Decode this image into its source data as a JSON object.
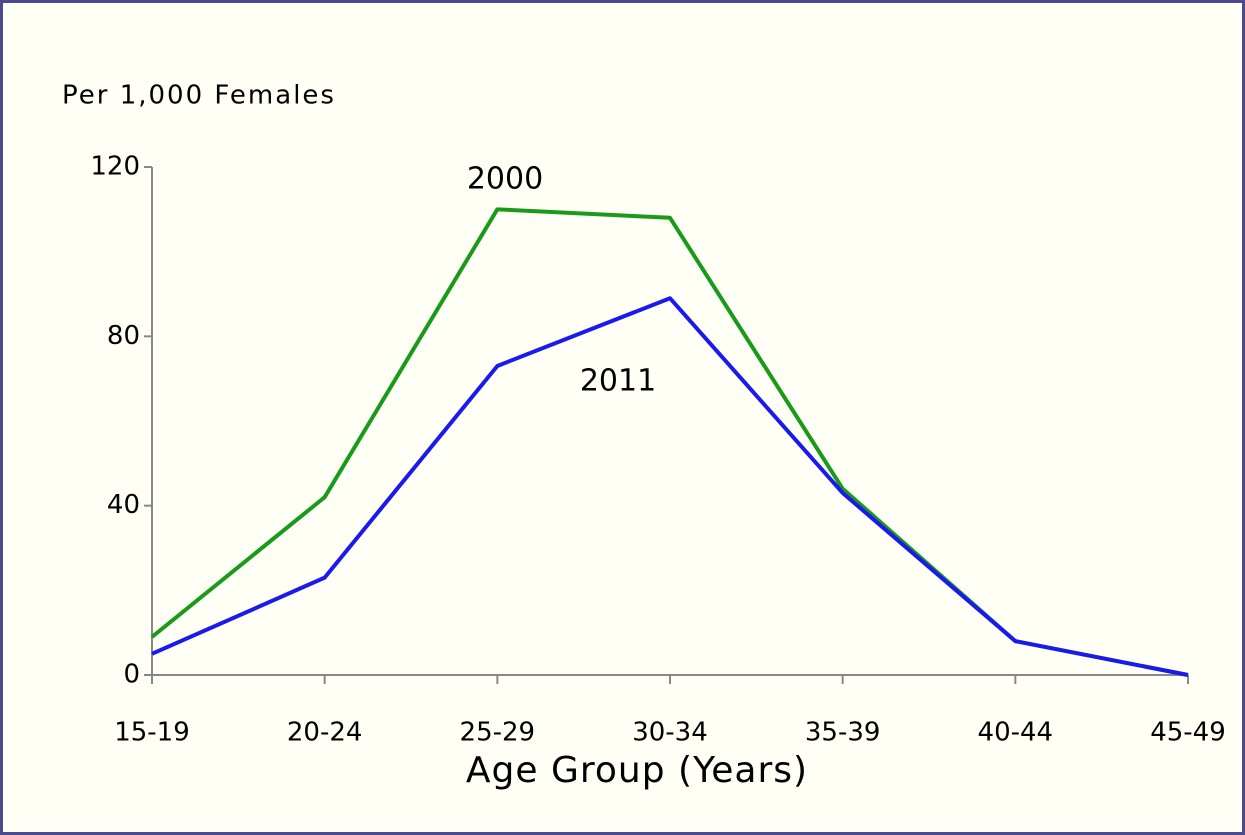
{
  "chart_data": {
    "type": "line",
    "y_axis_label": "Per 1,000 Females",
    "x_axis_label": "Age Group (Years)",
    "categories": [
      "15-19",
      "20-24",
      "25-29",
      "30-34",
      "35-39",
      "40-44",
      "45-49"
    ],
    "series": [
      {
        "name": "2000",
        "color": "#1a9a1a",
        "values": [
          9,
          42,
          110,
          108,
          44,
          8,
          0
        ]
      },
      {
        "name": "2011",
        "color": "#1a1aee",
        "values": [
          5,
          23,
          73,
          89,
          43,
          8,
          0
        ]
      }
    ],
    "ylim": [
      0,
      120
    ],
    "yticks": [
      0,
      40,
      80,
      120
    ],
    "grid": false
  }
}
